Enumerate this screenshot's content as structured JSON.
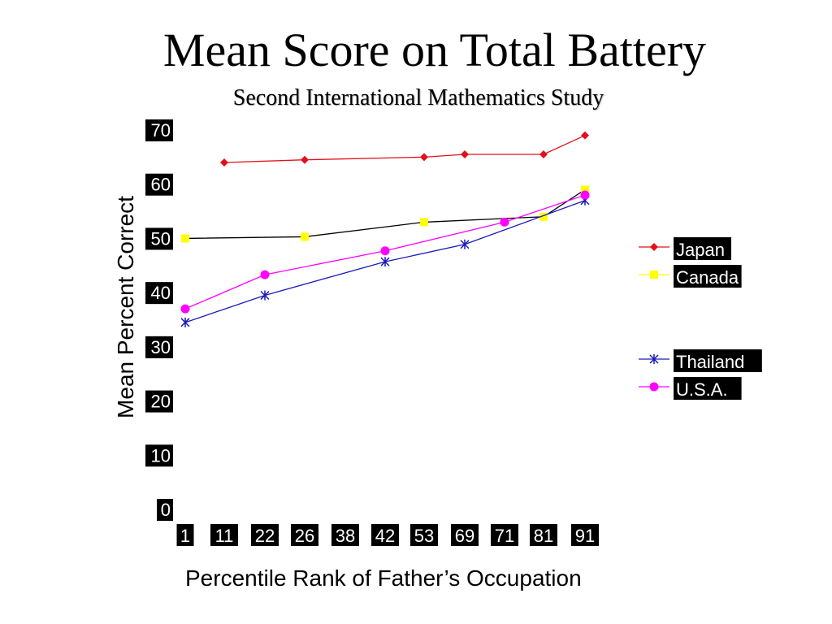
{
  "slide": {
    "title": "Mean Score on Total Battery",
    "subtitle": "Second International Mathematics Study"
  },
  "chart_data": {
    "type": "line",
    "title": "Second International Mathematics Study",
    "xlabel": "Percentile Rank of Father’s Occupation",
    "ylabel": "Mean Percent Correct",
    "categories": [
      "1",
      "11",
      "22",
      "26",
      "38",
      "42",
      "53",
      "69",
      "71",
      "81",
      "91"
    ],
    "yticks": [
      0,
      10,
      20,
      30,
      40,
      50,
      60,
      70
    ],
    "ylim": [
      0,
      70
    ],
    "grid": false,
    "legend_position": "right",
    "series": [
      {
        "name": "Japan",
        "color": "#e3101b",
        "marker": "diamond",
        "values": [
          null,
          64,
          null,
          64.5,
          null,
          null,
          65,
          65.5,
          null,
          65.5,
          69
        ]
      },
      {
        "name": "Canada",
        "color": "#ffff00",
        "marker": "square",
        "values": [
          50,
          null,
          null,
          50.3,
          null,
          null,
          53,
          null,
          null,
          54,
          59
        ]
      },
      {
        "name": "Thailand",
        "color": "#1a1ab8",
        "marker": "asterisk",
        "values": [
          34.5,
          null,
          39.5,
          null,
          null,
          45.7,
          null,
          48.9,
          null,
          null,
          57
        ]
      },
      {
        "name": "U.S.A.",
        "color": "#ff00ff",
        "marker": "circle",
        "values": [
          37,
          null,
          43.3,
          null,
          null,
          47.7,
          null,
          null,
          53,
          null,
          58
        ]
      }
    ]
  }
}
